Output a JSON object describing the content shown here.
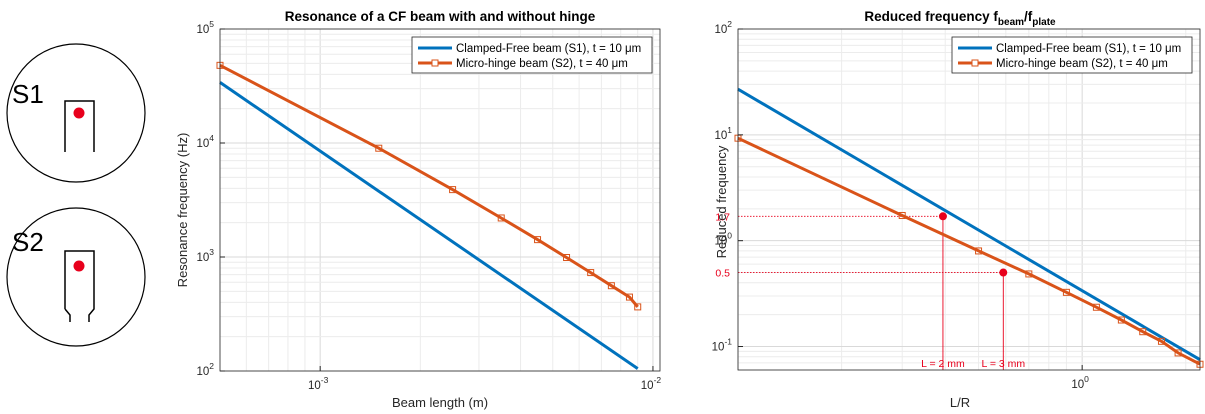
{
  "schematics": [
    {
      "label": "S1",
      "type": "clamped-free"
    },
    {
      "label": "S2",
      "type": "micro-hinge"
    }
  ],
  "colors": {
    "blue": "#0072bd",
    "orange": "#d95319",
    "red": "#e8001c",
    "grid": "#e3e3e3",
    "axis": "#262626"
  },
  "chart_data": [
    {
      "type": "line",
      "title": "Resonance of a CF beam with and without hinge",
      "xlabel": "Beam length (m)",
      "ylabel": "Resonance frequency (Hz)",
      "xscale": "log",
      "yscale": "log",
      "xlim": [
        0.0005,
        0.0105
      ],
      "ylim": [
        100,
        100000
      ],
      "xticks": [
        {
          "v": 0.001,
          "label": "10",
          "exp": "-3"
        },
        {
          "v": 0.01,
          "label": "10",
          "exp": "-2"
        }
      ],
      "yticks": [
        {
          "v": 100,
          "label": "10",
          "exp": "2"
        },
        {
          "v": 1000,
          "label": "10",
          "exp": "3"
        },
        {
          "v": 10000,
          "label": "10",
          "exp": "4"
        },
        {
          "v": 100000,
          "label": "10",
          "exp": "5"
        }
      ],
      "grid": true,
      "legend_position": "top-right",
      "series": [
        {
          "name": "Clamped-Free beam (S1), t = 10 μm",
          "color": "#0072bd",
          "markers": false,
          "x": [
            0.0005,
            0.009
          ],
          "y": [
            34000,
            105
          ]
        },
        {
          "name": "Micro-hinge beam (S2), t = 40 μm",
          "color": "#d95319",
          "markers": true,
          "x": [
            0.0005,
            0.0015,
            0.0025,
            0.0035,
            0.0045,
            0.0055,
            0.0065,
            0.0075,
            0.0085,
            0.009
          ],
          "y": [
            48000,
            9000,
            3900,
            2200,
            1420,
            990,
            730,
            560,
            445,
            365
          ]
        }
      ]
    },
    {
      "type": "line",
      "title": "Reduced frequency f",
      "title_sub1": "beam",
      "title_mid": "/f",
      "title_sub2": "plate",
      "xlabel": "L/R",
      "ylabel": "Reduced frequency",
      "xscale": "log",
      "yscale": "log",
      "xlim": [
        0.1,
        2.2
      ],
      "ylim": [
        0.06,
        100
      ],
      "xticks": [
        {
          "v": 1,
          "label": "10",
          "exp": "0"
        }
      ],
      "yticks": [
        {
          "v": 0.1,
          "label": "10",
          "exp": "-1"
        },
        {
          "v": 1,
          "label": "10",
          "exp": "0"
        },
        {
          "v": 10,
          "label": "10",
          "exp": "1"
        },
        {
          "v": 100,
          "label": "10",
          "exp": "2"
        }
      ],
      "grid": true,
      "legend_position": "top-right",
      "series": [
        {
          "name": "Clamped-Free beam (S1), t = 10 μm",
          "color": "#0072bd",
          "markers": false,
          "x": [
            0.1,
            2.2
          ],
          "y": [
            27,
            0.075
          ]
        },
        {
          "name": "Micro-hinge beam (S2), t = 40 μm",
          "color": "#d95319",
          "markers": true,
          "x": [
            0.1,
            0.3,
            0.5,
            0.7,
            0.9,
            1.1,
            1.3,
            1.5,
            1.7,
            1.9,
            2.2
          ],
          "y": [
            9.3,
            1.73,
            0.8,
            0.485,
            0.325,
            0.235,
            0.178,
            0.138,
            0.112,
            0.087,
            0.068
          ]
        }
      ],
      "annotations": [
        {
          "x": 0.394,
          "y": 1.7,
          "label": "1.7",
          "xlabel": "L = 2 mm"
        },
        {
          "x": 0.59,
          "y": 0.5,
          "label": "0.5",
          "xlabel": "L = 3 mm"
        }
      ]
    }
  ]
}
